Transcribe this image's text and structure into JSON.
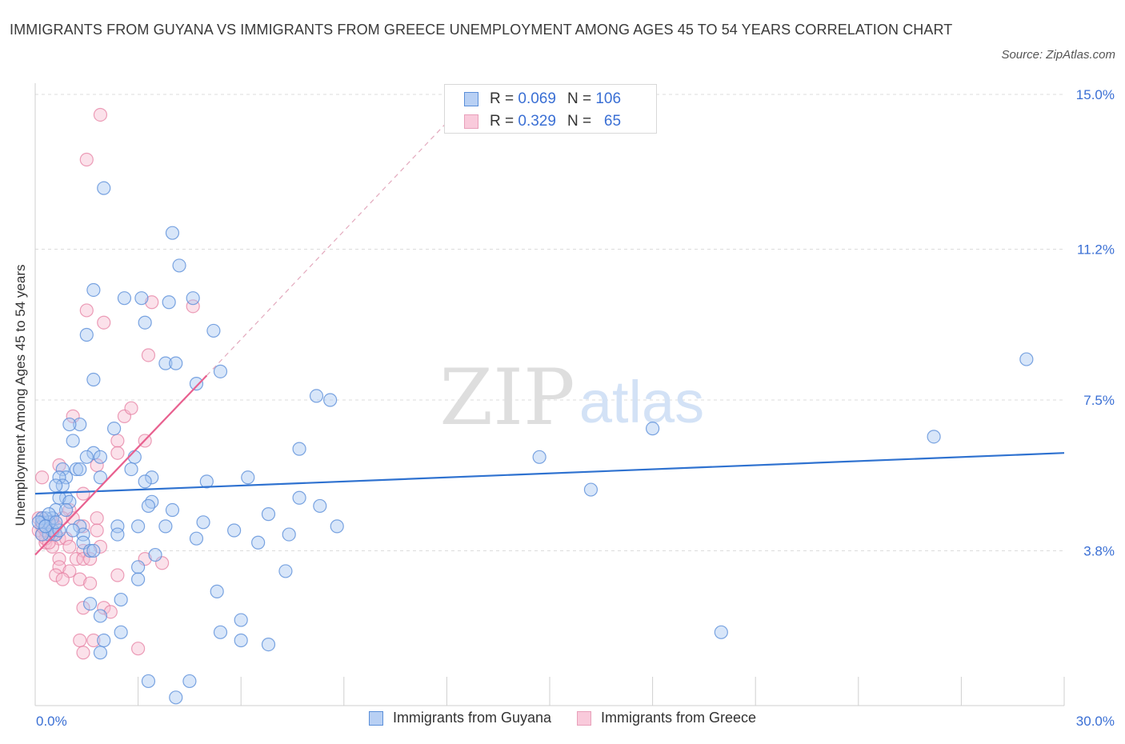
{
  "header": {
    "title": "IMMIGRANTS FROM GUYANA VS IMMIGRANTS FROM GREECE UNEMPLOYMENT AMONG AGES 45 TO 54 YEARS CORRELATION CHART",
    "source": "Source: ZipAtlas.com"
  },
  "watermark": {
    "zip": "ZIP",
    "atlas": "atlas"
  },
  "legend": {
    "r_label": "R =",
    "n_label": "N =",
    "guyana": {
      "r": "0.069",
      "n": "106"
    },
    "greece": {
      "r": "0.329",
      "n": "65"
    }
  },
  "bottom_legend": {
    "guyana": "Immigrants from Guyana",
    "greece": "Immigrants from Greece"
  },
  "colors": {
    "guyana_fill": "#a9c7f2",
    "guyana_stroke": "#5b8fd9",
    "guyana_line": "#2f72d0",
    "greece_fill": "#f7bdd0",
    "greece_stroke": "#e57fa2",
    "greece_line": "#e8608f",
    "tick_label": "#3a6fd4",
    "grid": "#dcdcdc"
  },
  "chart_data": {
    "type": "scatter",
    "title": "IMMIGRANTS FROM GUYANA VS IMMIGRANTS FROM GREECE UNEMPLOYMENT AMONG AGES 45 TO 54 YEARS CORRELATION CHART",
    "xlabel": "",
    "ylabel": "Unemployment Among Ages 45 to 54 years",
    "xlim": [
      0,
      30
    ],
    "ylim": [
      0,
      15
    ],
    "x_tick_labels": [
      "0.0%",
      "30.0%"
    ],
    "y_ticks": [
      3.8,
      7.5,
      11.2,
      15.0
    ],
    "y_tick_labels": [
      "3.8%",
      "7.5%",
      "11.2%",
      "15.0%"
    ],
    "grid": true,
    "legend_position": "top-center",
    "series": [
      {
        "name": "Immigrants from Guyana",
        "R": 0.069,
        "N": 106,
        "trend": {
          "x": [
            0,
            30
          ],
          "y": [
            5.2,
            6.2
          ]
        },
        "points": [
          [
            2.0,
            12.7
          ],
          [
            4.0,
            11.6
          ],
          [
            4.2,
            10.8
          ],
          [
            1.7,
            10.2
          ],
          [
            2.6,
            10.0
          ],
          [
            3.1,
            10.0
          ],
          [
            3.9,
            9.9
          ],
          [
            4.6,
            10.0
          ],
          [
            3.2,
            9.4
          ],
          [
            1.5,
            9.1
          ],
          [
            5.2,
            9.2
          ],
          [
            1.7,
            8.0
          ],
          [
            3.8,
            8.4
          ],
          [
            4.1,
            8.4
          ],
          [
            5.4,
            8.2
          ],
          [
            4.7,
            7.9
          ],
          [
            8.2,
            7.6
          ],
          [
            8.6,
            7.5
          ],
          [
            1.3,
            6.9
          ],
          [
            1.0,
            6.9
          ],
          [
            2.3,
            6.8
          ],
          [
            1.1,
            6.5
          ],
          [
            1.7,
            6.2
          ],
          [
            1.9,
            6.1
          ],
          [
            7.7,
            6.3
          ],
          [
            2.9,
            6.1
          ],
          [
            1.5,
            6.1
          ],
          [
            0.8,
            5.8
          ],
          [
            1.2,
            5.8
          ],
          [
            1.3,
            5.8
          ],
          [
            2.8,
            5.8
          ],
          [
            3.4,
            5.6
          ],
          [
            1.9,
            5.6
          ],
          [
            0.9,
            5.6
          ],
          [
            0.7,
            5.6
          ],
          [
            6.2,
            5.6
          ],
          [
            3.2,
            5.5
          ],
          [
            5.0,
            5.5
          ],
          [
            0.8,
            5.4
          ],
          [
            0.6,
            5.4
          ],
          [
            0.9,
            5.1
          ],
          [
            0.7,
            5.1
          ],
          [
            1.0,
            5.0
          ],
          [
            3.4,
            5.0
          ],
          [
            7.7,
            5.1
          ],
          [
            3.3,
            4.9
          ],
          [
            0.6,
            4.8
          ],
          [
            4.0,
            4.8
          ],
          [
            6.8,
            4.7
          ],
          [
            8.3,
            4.9
          ],
          [
            0.5,
            4.6
          ],
          [
            0.3,
            4.6
          ],
          [
            0.2,
            4.5
          ],
          [
            0.4,
            4.5
          ],
          [
            1.3,
            4.4
          ],
          [
            2.4,
            4.4
          ],
          [
            3.0,
            4.4
          ],
          [
            3.8,
            4.4
          ],
          [
            4.9,
            4.5
          ],
          [
            8.8,
            4.4
          ],
          [
            5.8,
            4.3
          ],
          [
            7.4,
            4.2
          ],
          [
            0.4,
            4.2
          ],
          [
            0.6,
            4.2
          ],
          [
            1.4,
            4.2
          ],
          [
            2.4,
            4.2
          ],
          [
            4.7,
            4.1
          ],
          [
            6.5,
            4.0
          ],
          [
            1.4,
            4.0
          ],
          [
            1.6,
            3.8
          ],
          [
            1.7,
            3.8
          ],
          [
            3.5,
            3.7
          ],
          [
            3.0,
            3.4
          ],
          [
            7.3,
            3.3
          ],
          [
            3.0,
            3.1
          ],
          [
            5.3,
            2.8
          ],
          [
            1.6,
            2.5
          ],
          [
            2.5,
            2.6
          ],
          [
            1.9,
            2.2
          ],
          [
            6.0,
            2.1
          ],
          [
            2.5,
            1.8
          ],
          [
            5.4,
            1.8
          ],
          [
            2.0,
            1.6
          ],
          [
            6.0,
            1.6
          ],
          [
            6.8,
            1.5
          ],
          [
            1.9,
            1.3
          ],
          [
            3.3,
            0.6
          ],
          [
            4.5,
            0.6
          ],
          [
            4.1,
            0.2
          ],
          [
            20.0,
            1.8
          ],
          [
            14.7,
            6.1
          ],
          [
            16.2,
            5.3
          ],
          [
            18.0,
            6.8
          ],
          [
            26.2,
            6.6
          ],
          [
            28.9,
            8.5
          ],
          [
            0.2,
            4.6
          ],
          [
            0.3,
            4.4
          ],
          [
            0.5,
            4.3
          ],
          [
            0.1,
            4.5
          ],
          [
            0.4,
            4.7
          ],
          [
            0.7,
            4.3
          ],
          [
            0.2,
            4.2
          ],
          [
            1.1,
            4.3
          ],
          [
            0.9,
            4.8
          ],
          [
            0.3,
            4.4
          ],
          [
            0.6,
            4.5
          ]
        ]
      },
      {
        "name": "Immigrants from Greece",
        "R": 0.329,
        "N": 65,
        "trend": {
          "x": [
            0,
            5.0
          ],
          "y": [
            3.7,
            8.1
          ]
        },
        "trend_extended": {
          "x": [
            5.0,
            12.1
          ],
          "y": [
            8.1,
            14.4
          ]
        },
        "points": [
          [
            1.9,
            14.5
          ],
          [
            1.5,
            13.4
          ],
          [
            1.5,
            9.7
          ],
          [
            2.0,
            9.4
          ],
          [
            3.4,
            9.9
          ],
          [
            4.6,
            9.8
          ],
          [
            3.3,
            8.6
          ],
          [
            1.1,
            7.1
          ],
          [
            2.6,
            7.1
          ],
          [
            2.8,
            7.3
          ],
          [
            2.4,
            6.5
          ],
          [
            3.2,
            6.5
          ],
          [
            2.4,
            6.2
          ],
          [
            1.8,
            5.9
          ],
          [
            0.7,
            5.9
          ],
          [
            0.2,
            5.6
          ],
          [
            1.4,
            5.2
          ],
          [
            1.0,
            4.8
          ],
          [
            0.8,
            4.6
          ],
          [
            1.1,
            4.6
          ],
          [
            1.8,
            4.6
          ],
          [
            1.4,
            4.4
          ],
          [
            1.8,
            4.3
          ],
          [
            0.3,
            4.4
          ],
          [
            0.5,
            4.3
          ],
          [
            0.6,
            4.2
          ],
          [
            0.7,
            4.1
          ],
          [
            0.9,
            4.1
          ],
          [
            0.3,
            4.0
          ],
          [
            0.5,
            3.9
          ],
          [
            1.0,
            3.9
          ],
          [
            1.4,
            3.8
          ],
          [
            1.9,
            3.9
          ],
          [
            0.7,
            3.6
          ],
          [
            1.2,
            3.6
          ],
          [
            1.4,
            3.6
          ],
          [
            1.6,
            3.6
          ],
          [
            0.7,
            3.4
          ],
          [
            1.0,
            3.3
          ],
          [
            1.3,
            3.1
          ],
          [
            0.6,
            3.2
          ],
          [
            1.6,
            3.0
          ],
          [
            0.8,
            3.1
          ],
          [
            2.4,
            3.2
          ],
          [
            3.2,
            3.6
          ],
          [
            3.7,
            3.5
          ],
          [
            1.4,
            2.4
          ],
          [
            2.0,
            2.4
          ],
          [
            2.2,
            2.3
          ],
          [
            1.3,
            1.6
          ],
          [
            1.7,
            1.6
          ],
          [
            1.4,
            1.3
          ],
          [
            3.0,
            1.4
          ],
          [
            0.2,
            4.6
          ],
          [
            0.4,
            4.5
          ],
          [
            0.1,
            4.3
          ],
          [
            0.3,
            4.1
          ],
          [
            0.5,
            4.5
          ],
          [
            0.2,
            4.2
          ],
          [
            0.6,
            4.4
          ],
          [
            0.4,
            4.0
          ],
          [
            0.3,
            4.3
          ],
          [
            0.1,
            4.6
          ],
          [
            0.5,
            4.2
          ],
          [
            0.2,
            4.4
          ]
        ]
      }
    ]
  }
}
